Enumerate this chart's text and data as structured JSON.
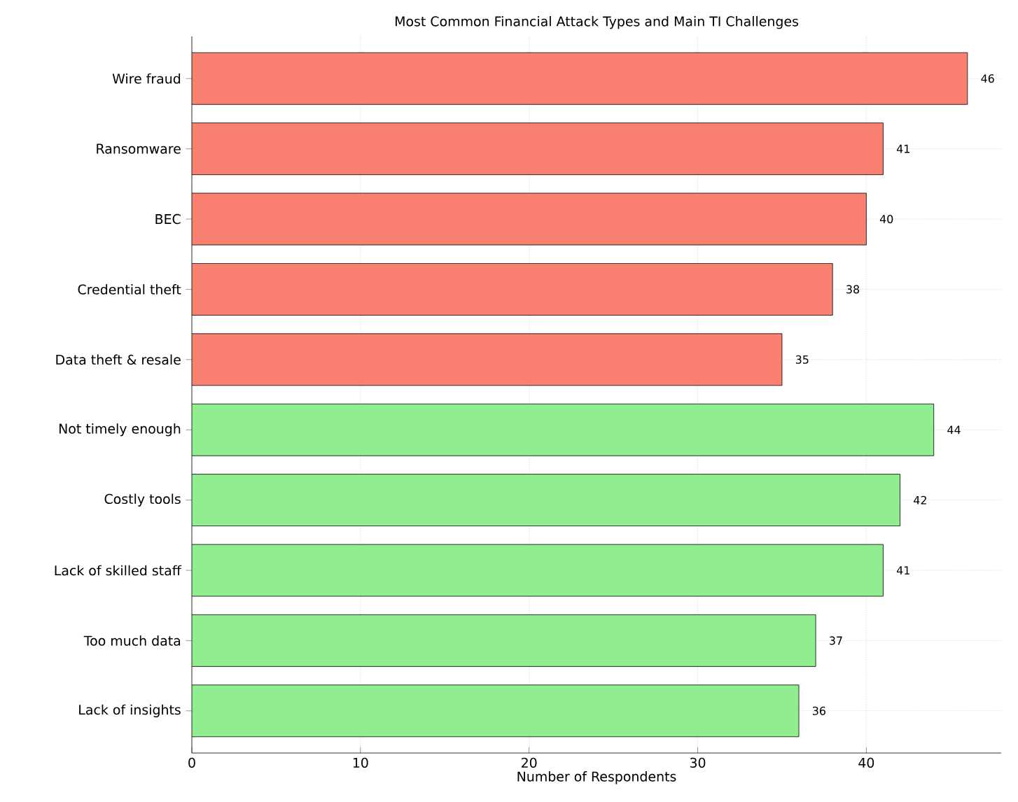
{
  "chart_data": {
    "type": "bar",
    "orientation": "horizontal",
    "title": "Most Common Financial Attack Types and Main TI Challenges",
    "xlabel": "Number of Respondents",
    "categories": [
      "Wire fraud",
      "Ransomware",
      "BEC",
      "Credential theft",
      "Data theft & resale",
      "Not timely enough",
      "Costly tools",
      "Lack of skilled staff",
      "Too much data",
      "Lack of insights"
    ],
    "values": [
      46,
      41,
      40,
      38,
      35,
      44,
      42,
      41,
      37,
      36
    ],
    "colors": [
      "#fa8072",
      "#fa8072",
      "#fa8072",
      "#fa8072",
      "#fa8072",
      "#90ee90",
      "#90ee90",
      "#90ee90",
      "#90ee90",
      "#90ee90"
    ],
    "xlim": [
      0,
      48
    ],
    "xticks": [
      0,
      10,
      20,
      30,
      40
    ],
    "grid": true,
    "data_labels": true
  }
}
